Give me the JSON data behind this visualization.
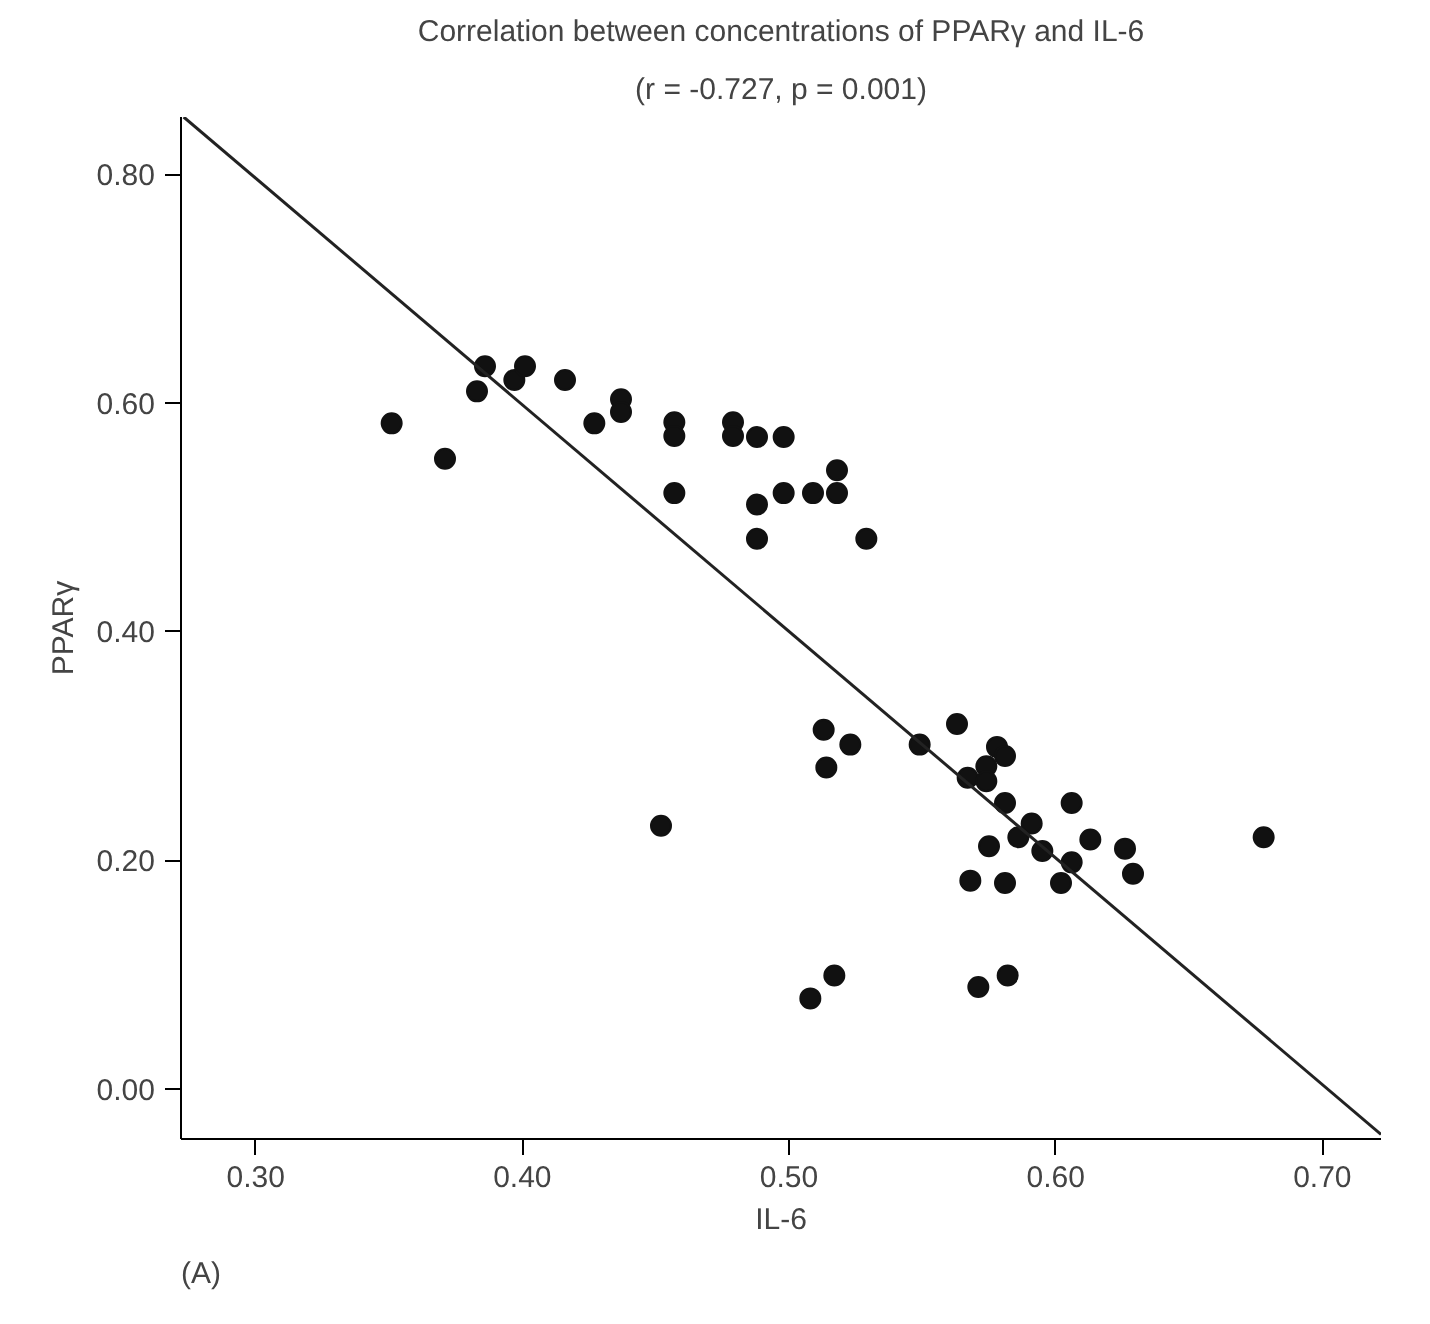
{
  "chart_data": {
    "type": "scatter",
    "title": "Correlation between concentrations of PPARγ and IL-6",
    "subtitle": "(r = -0.727, p = 0.001)",
    "xlabel": "IL-6",
    "ylabel": "PPARγ",
    "annotations": [
      "(A)"
    ],
    "xlim": [
      0.272,
      0.722
    ],
    "ylim": [
      -0.044,
      0.85
    ],
    "xticks": [
      {
        "value": 0.3,
        "label": "0.30"
      },
      {
        "value": 0.4,
        "label": "0.40"
      },
      {
        "value": 0.5,
        "label": "0.50"
      },
      {
        "value": 0.6,
        "label": "0.60"
      },
      {
        "value": 0.7,
        "label": "0.70"
      }
    ],
    "yticks": [
      {
        "value": 0,
        "label": "0.00"
      },
      {
        "value": 0.2,
        "label": "0.20"
      },
      {
        "value": 0.4,
        "label": "0.40"
      },
      {
        "value": 0.6,
        "label": "0.60"
      },
      {
        "value": 0.8,
        "label": "0.80"
      }
    ],
    "grid": false,
    "marker": "circle",
    "series": [
      {
        "color": "#111111",
        "x": [
          0.351,
          0.371,
          0.383,
          0.386,
          0.397,
          0.401,
          0.416,
          0.427,
          0.437,
          0.437,
          0.457,
          0.457,
          0.457,
          0.479,
          0.479,
          0.488,
          0.498,
          0.488,
          0.488,
          0.498,
          0.509,
          0.518,
          0.518,
          0.529,
          0.452,
          0.513,
          0.514,
          0.523,
          0.508,
          0.517,
          0.549,
          0.563,
          0.578,
          0.581,
          0.574,
          0.567,
          0.574,
          0.581,
          0.606,
          0.591,
          0.586,
          0.613,
          0.575,
          0.595,
          0.626,
          0.606,
          0.629,
          0.568,
          0.581,
          0.602,
          0.678,
          0.571,
          0.582
        ],
        "values": [
          0.582,
          0.551,
          0.61,
          0.632,
          0.62,
          0.632,
          0.62,
          0.582,
          0.603,
          0.592,
          0.583,
          0.571,
          0.521,
          0.583,
          0.571,
          0.57,
          0.57,
          0.511,
          0.481,
          0.521,
          0.521,
          0.541,
          0.521,
          0.481,
          0.23,
          0.314,
          0.281,
          0.301,
          0.079,
          0.099,
          0.301,
          0.319,
          0.299,
          0.291,
          0.282,
          0.272,
          0.269,
          0.25,
          0.25,
          0.232,
          0.22,
          0.218,
          0.212,
          0.208,
          0.21,
          0.198,
          0.188,
          0.182,
          0.18,
          0.18,
          0.22,
          0.089,
          0.099
        ]
      },
      {
        "type": "line",
        "color": "#222222",
        "line_style": "solid",
        "marker": "none",
        "x": [
          0.273,
          0.722
        ],
        "values": [
          0.85,
          -0.04
        ]
      }
    ]
  }
}
